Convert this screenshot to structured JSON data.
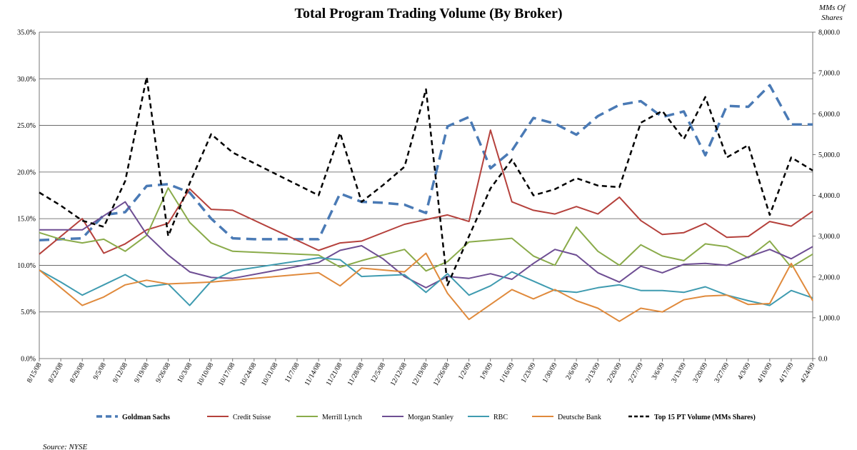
{
  "chart_data": {
    "type": "line",
    "title": "Total Program Trading Volume  (By Broker)",
    "right_axis_label_line1": "MMs Of",
    "right_axis_label_line2": "Shares",
    "source": "Source: NYSE",
    "left_axis": {
      "min": 0,
      "max": 35,
      "ticks": [
        "0.0%",
        "5.0%",
        "10.0%",
        "15.0%",
        "20.0%",
        "25.0%",
        "30.0%",
        "35.0%"
      ]
    },
    "right_axis": {
      "min": 0,
      "max": 8000,
      "ticks": [
        "0.0",
        "1,000.0",
        "2,000.0",
        "3,000.0",
        "4,000.0",
        "5,000.0",
        "6,000.0",
        "7,000.0",
        "8,000.0"
      ]
    },
    "grid": true,
    "legend_position": "bottom",
    "x_labels": [
      "8/15/08",
      "8/22/08",
      "8/29/08",
      "9/5/08",
      "9/12/08",
      "9/19/08",
      "9/26/08",
      "10/3/08",
      "10/10/08",
      "10/17/08",
      "10/24/08",
      "10/31/08",
      "11/7/08",
      "11/14/08",
      "11/21/08",
      "11/28/08",
      "12/5/08",
      "12/12/08",
      "12/19/08",
      "12/26/08",
      "1/2/09",
      "1/9/09",
      "1/16/09",
      "1/23/09",
      "1/30/09",
      "2/6/09",
      "2/13/09",
      "2/20/09",
      "2/27/09",
      "3/6/09",
      "3/13/09",
      "3/20/09",
      "3/27/09",
      "4/3/09",
      "4/10/09",
      "4/17/09",
      "4/24/09"
    ],
    "series": [
      {
        "name": "Goldman Sachs",
        "axis": "left",
        "color": "#4a7ab5",
        "style": "dashed-thick",
        "legend_bold": true,
        "points": [
          [
            0,
            12.7
          ],
          [
            2,
            12.9
          ],
          [
            3,
            15.4
          ],
          [
            4,
            15.7
          ],
          [
            5,
            18.5
          ],
          [
            6,
            18.7
          ],
          [
            7,
            17.8
          ],
          [
            8,
            15.0
          ],
          [
            9,
            12.9
          ],
          [
            10,
            12.8
          ],
          [
            11,
            12.8
          ],
          [
            12,
            12.8
          ],
          [
            13,
            12.8
          ],
          [
            14,
            17.7
          ],
          [
            15,
            16.8
          ],
          [
            16,
            16.7
          ],
          [
            17,
            16.5
          ],
          [
            18,
            15.6
          ],
          [
            19,
            24.9
          ],
          [
            20,
            25.9
          ],
          [
            21,
            20.4
          ],
          [
            22,
            22.3
          ],
          [
            23,
            25.8
          ],
          [
            24,
            25.2
          ],
          [
            25,
            24.0
          ],
          [
            26,
            26.0
          ],
          [
            27,
            27.2
          ],
          [
            28,
            27.6
          ],
          [
            29,
            25.9
          ],
          [
            30,
            26.5
          ],
          [
            31,
            21.8
          ],
          [
            32,
            27.1
          ],
          [
            33,
            27.0
          ],
          [
            34,
            29.3
          ],
          [
            35,
            25.1
          ],
          [
            36,
            25.1
          ]
        ]
      },
      {
        "name": "Credit Suisse",
        "axis": "left",
        "color": "#b5413c",
        "style": "solid",
        "legend_bold": false,
        "points": [
          [
            0,
            11.2
          ],
          [
            2,
            15.0
          ],
          [
            3,
            11.3
          ],
          [
            4,
            12.3
          ],
          [
            5,
            13.8
          ],
          [
            6,
            14.5
          ],
          [
            7,
            18.2
          ],
          [
            8,
            16.0
          ],
          [
            9,
            15.9
          ],
          [
            13,
            11.6
          ],
          [
            14,
            12.4
          ],
          [
            15,
            12.6
          ],
          [
            17,
            14.4
          ],
          [
            18,
            14.9
          ],
          [
            19,
            15.4
          ],
          [
            20,
            14.7
          ],
          [
            21,
            24.5
          ],
          [
            22,
            16.8
          ],
          [
            23,
            15.9
          ],
          [
            24,
            15.5
          ],
          [
            25,
            16.3
          ],
          [
            26,
            15.5
          ],
          [
            27,
            17.3
          ],
          [
            28,
            14.8
          ],
          [
            29,
            13.3
          ],
          [
            30,
            13.5
          ],
          [
            31,
            14.5
          ],
          [
            32,
            13.0
          ],
          [
            33,
            13.1
          ],
          [
            34,
            14.7
          ],
          [
            35,
            14.2
          ],
          [
            36,
            15.8
          ]
        ]
      },
      {
        "name": "Merrill Lynch",
        "axis": "left",
        "color": "#8aab4a",
        "style": "solid",
        "legend_bold": false,
        "points": [
          [
            0,
            13.5
          ],
          [
            1,
            12.8
          ],
          [
            2,
            12.4
          ],
          [
            3,
            12.8
          ],
          [
            4,
            11.5
          ],
          [
            5,
            13.2
          ],
          [
            6,
            18.3
          ],
          [
            7,
            14.6
          ],
          [
            8,
            12.4
          ],
          [
            9,
            11.5
          ],
          [
            13,
            11.1
          ],
          [
            14,
            9.8
          ],
          [
            15,
            10.5
          ],
          [
            17,
            11.7
          ],
          [
            18,
            9.4
          ],
          [
            19,
            10.4
          ],
          [
            20,
            12.5
          ],
          [
            21,
            12.7
          ],
          [
            22,
            12.9
          ],
          [
            23,
            11.0
          ],
          [
            24,
            10.0
          ],
          [
            25,
            14.1
          ],
          [
            26,
            11.5
          ],
          [
            27,
            10.0
          ],
          [
            28,
            12.2
          ],
          [
            29,
            11.0
          ],
          [
            30,
            10.5
          ],
          [
            31,
            12.3
          ],
          [
            32,
            12.0
          ],
          [
            33,
            10.8
          ],
          [
            34,
            12.6
          ],
          [
            35,
            9.8
          ],
          [
            36,
            11.2
          ]
        ]
      },
      {
        "name": "Morgan Stanley",
        "axis": "left",
        "color": "#6e4e93",
        "style": "solid",
        "legend_bold": false,
        "points": [
          [
            0,
            13.8
          ],
          [
            1,
            13.8
          ],
          [
            2,
            13.8
          ],
          [
            3,
            15.3
          ],
          [
            4,
            16.8
          ],
          [
            5,
            13.3
          ],
          [
            6,
            11.1
          ],
          [
            7,
            9.3
          ],
          [
            8,
            8.7
          ],
          [
            9,
            8.6
          ],
          [
            13,
            10.3
          ],
          [
            14,
            11.6
          ],
          [
            15,
            12.1
          ],
          [
            16,
            10.7
          ],
          [
            17,
            8.8
          ],
          [
            18,
            7.6
          ],
          [
            19,
            8.8
          ],
          [
            20,
            8.6
          ],
          [
            21,
            9.1
          ],
          [
            22,
            8.5
          ],
          [
            23,
            10.2
          ],
          [
            24,
            11.7
          ],
          [
            25,
            11.1
          ],
          [
            26,
            9.2
          ],
          [
            27,
            8.2
          ],
          [
            28,
            9.9
          ],
          [
            29,
            9.2
          ],
          [
            30,
            10.1
          ],
          [
            31,
            10.2
          ],
          [
            32,
            10.0
          ],
          [
            33,
            10.9
          ],
          [
            34,
            11.7
          ],
          [
            35,
            10.7
          ],
          [
            36,
            12.0
          ]
        ]
      },
      {
        "name": "RBC",
        "axis": "left",
        "color": "#3f9bb0",
        "style": "solid",
        "legend_bold": false,
        "points": [
          [
            0,
            9.5
          ],
          [
            1,
            8.2
          ],
          [
            2,
            6.8
          ],
          [
            3,
            7.9
          ],
          [
            4,
            9.0
          ],
          [
            5,
            7.7
          ],
          [
            6,
            8.0
          ],
          [
            7,
            5.7
          ],
          [
            8,
            8.3
          ],
          [
            9,
            9.4
          ],
          [
            13,
            10.8
          ],
          [
            14,
            10.6
          ],
          [
            15,
            8.8
          ],
          [
            17,
            9.0
          ],
          [
            18,
            7.1
          ],
          [
            19,
            9.1
          ],
          [
            20,
            6.8
          ],
          [
            21,
            7.8
          ],
          [
            22,
            9.3
          ],
          [
            23,
            8.3
          ],
          [
            24,
            7.3
          ],
          [
            25,
            7.1
          ],
          [
            26,
            7.6
          ],
          [
            27,
            7.9
          ],
          [
            28,
            7.3
          ],
          [
            29,
            7.3
          ],
          [
            30,
            7.1
          ],
          [
            31,
            7.7
          ],
          [
            32,
            6.8
          ],
          [
            33,
            6.2
          ],
          [
            34,
            5.7
          ],
          [
            35,
            7.3
          ],
          [
            36,
            6.5
          ]
        ]
      },
      {
        "name": "Deutsche Bank",
        "axis": "left",
        "color": "#e08a3c",
        "style": "solid",
        "legend_bold": false,
        "points": [
          [
            0,
            9.5
          ],
          [
            1,
            7.6
          ],
          [
            2,
            5.7
          ],
          [
            3,
            6.6
          ],
          [
            4,
            7.9
          ],
          [
            5,
            8.4
          ],
          [
            6,
            8.0
          ],
          [
            7,
            8.1
          ],
          [
            8,
            8.2
          ],
          [
            9,
            8.4
          ],
          [
            13,
            9.2
          ],
          [
            14,
            7.8
          ],
          [
            15,
            9.7
          ],
          [
            17,
            9.3
          ],
          [
            18,
            11.3
          ],
          [
            19,
            7.0
          ],
          [
            20,
            4.2
          ],
          [
            21,
            5.8
          ],
          [
            22,
            7.4
          ],
          [
            23,
            6.4
          ],
          [
            24,
            7.4
          ],
          [
            25,
            6.2
          ],
          [
            26,
            5.4
          ],
          [
            27,
            4.0
          ],
          [
            28,
            5.4
          ],
          [
            29,
            5.0
          ],
          [
            30,
            6.3
          ],
          [
            31,
            6.7
          ],
          [
            32,
            6.8
          ],
          [
            33,
            5.8
          ],
          [
            34,
            5.9
          ],
          [
            35,
            10.2
          ],
          [
            36,
            6.2
          ]
        ]
      },
      {
        "name": "Top 15 PT Volume (MMs Shares)",
        "axis": "right",
        "color": "#000000",
        "style": "dashed",
        "legend_bold": true,
        "points": [
          [
            0,
            4070
          ],
          [
            1,
            3750
          ],
          [
            2,
            3380
          ],
          [
            3,
            3230
          ],
          [
            4,
            4350
          ],
          [
            5,
            6900
          ],
          [
            6,
            3000
          ],
          [
            7,
            4300
          ],
          [
            8,
            5500
          ],
          [
            9,
            5050
          ],
          [
            13,
            4000
          ],
          [
            14,
            5530
          ],
          [
            15,
            3840
          ],
          [
            16,
            4250
          ],
          [
            17,
            4700
          ],
          [
            18,
            6600
          ],
          [
            19,
            1800
          ],
          [
            20,
            3000
          ],
          [
            21,
            4170
          ],
          [
            22,
            4880
          ],
          [
            23,
            4000
          ],
          [
            24,
            4150
          ],
          [
            25,
            4420
          ],
          [
            26,
            4240
          ],
          [
            27,
            4200
          ],
          [
            28,
            5780
          ],
          [
            29,
            6070
          ],
          [
            30,
            5380
          ],
          [
            31,
            6410
          ],
          [
            32,
            4930
          ],
          [
            33,
            5230
          ],
          [
            34,
            3520
          ],
          [
            35,
            4930
          ],
          [
            36,
            4610
          ]
        ]
      }
    ]
  }
}
